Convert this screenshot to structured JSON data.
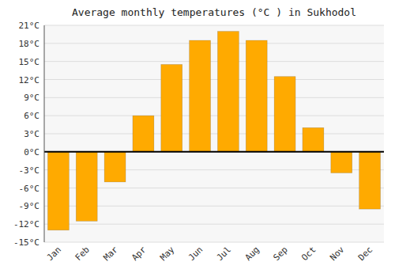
{
  "chart_data": {
    "type": "bar",
    "title": "Average monthly temperatures (°C ) in Sukhodol",
    "categories": [
      "Jan",
      "Feb",
      "Mar",
      "Apr",
      "May",
      "Jun",
      "Jul",
      "Aug",
      "Sep",
      "Oct",
      "Nov",
      "Dec"
    ],
    "values": [
      -13,
      -11.5,
      -5,
      6,
      14.5,
      18.5,
      20,
      18.5,
      12.5,
      4,
      -3.5,
      -9.5
    ],
    "color": "#FFAA00",
    "ylim": [
      -15,
      21
    ],
    "yticks": [
      {
        "value": -15,
        "label": "-15°C"
      },
      {
        "value": -12,
        "label": "-12°C"
      },
      {
        "value": -9,
        "label": "-9°C"
      },
      {
        "value": -6,
        "label": "-6°C"
      },
      {
        "value": -3,
        "label": "-3°C"
      },
      {
        "value": 0,
        "label": "0°C"
      },
      {
        "value": 3,
        "label": "3°C"
      },
      {
        "value": 6,
        "label": "6°C"
      },
      {
        "value": 9,
        "label": "9°C"
      },
      {
        "value": 12,
        "label": "12°C"
      },
      {
        "value": 15,
        "label": "15°C"
      },
      {
        "value": 18,
        "label": "18°C"
      },
      {
        "value": 21,
        "label": "21°C"
      }
    ],
    "grid": true
  }
}
